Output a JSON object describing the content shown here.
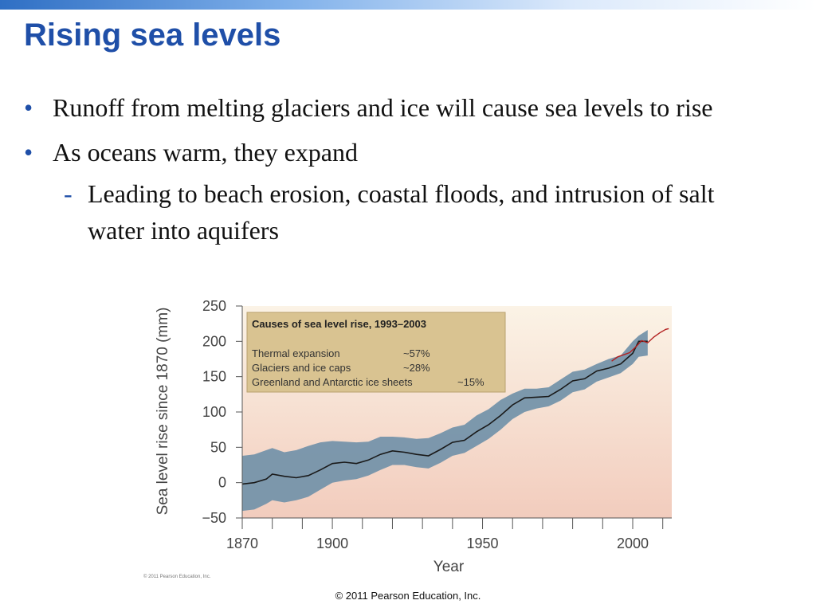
{
  "slide": {
    "title": "Rising sea levels",
    "bullets": [
      "Runoff from melting glaciers and ice will cause sea levels to rise",
      "As oceans warm, they expand"
    ],
    "sub_bullet": "Leading to beach erosion, coastal floods, and intrusion of salt water into aquifers",
    "bullet_symbol": "•",
    "sub_symbol": "-",
    "figure_credit": "© 2011 Pearson Education, Inc.",
    "footer": "© 2011 Pearson Education, Inc."
  },
  "colors": {
    "title": "#1f4fa8",
    "band": "#7593aa",
    "line": "#1a1a1a",
    "recent_line": "#b32020",
    "background_top": "#fbf3e6",
    "background_bottom": "#f2ccbd",
    "legend_box": "#d9c391"
  },
  "chart_data": {
    "type": "line",
    "title": "",
    "xlabel": "Year",
    "ylabel": "Sea level rise since 1870 (mm)",
    "xlim": [
      1870,
      2013
    ],
    "ylim": [
      -50,
      250
    ],
    "x_ticks": [
      1870,
      1900,
      1950,
      2000
    ],
    "y_ticks": [
      250,
      200,
      150,
      100,
      50,
      0,
      -50
    ],
    "y_tick_labels": [
      "250",
      "200",
      "150",
      "100",
      "50",
      "0",
      "−50"
    ],
    "grid": false,
    "legend": {
      "placement": "top-left",
      "title": "Causes of sea level rise, 1993–2003",
      "rows": [
        {
          "label": "Thermal expansion",
          "value": "~57%"
        },
        {
          "label": "Glaciers and ice caps",
          "value": "~28%"
        },
        {
          "label": "Greenland and Antarctic ice sheets",
          "value": "~15%"
        }
      ]
    },
    "series": [
      {
        "x": [
          1870,
          1874,
          1878,
          1880,
          1884,
          1888,
          1892,
          1896,
          1900,
          1904,
          1908,
          1912,
          1916,
          1920,
          1924,
          1928,
          1932,
          1936,
          1940,
          1944,
          1948,
          1952,
          1956,
          1960,
          1964,
          1968,
          1972,
          1976,
          1980,
          1984,
          1988,
          1992,
          1996,
          2000,
          2002,
          2005
        ],
        "values": [
          -2,
          0,
          5,
          12,
          9,
          7,
          10,
          18,
          27,
          29,
          27,
          32,
          40,
          45,
          43,
          40,
          38,
          47,
          57,
          60,
          72,
          82,
          95,
          110,
          120,
          121,
          122,
          132,
          144,
          147,
          158,
          162,
          168,
          183,
          200,
          200
        ],
        "upper": [
          38,
          40,
          46,
          49,
          43,
          46,
          52,
          57,
          59,
          58,
          57,
          58,
          65,
          65,
          64,
          62,
          63,
          70,
          78,
          82,
          95,
          104,
          117,
          126,
          133,
          133,
          135,
          146,
          157,
          160,
          168,
          175,
          180,
          200,
          208,
          216
        ],
        "lower": [
          -40,
          -38,
          -30,
          -25,
          -28,
          -25,
          -20,
          -10,
          0,
          3,
          5,
          10,
          18,
          25,
          25,
          22,
          20,
          28,
          38,
          42,
          52,
          62,
          75,
          90,
          100,
          105,
          108,
          116,
          128,
          132,
          143,
          149,
          155,
          168,
          178,
          180
        ]
      },
      {
        "x": [
          1993,
          1995,
          1997,
          1999,
          2001,
          2003,
          2005,
          2007,
          2009,
          2011,
          2012
        ],
        "values": [
          172,
          178,
          181,
          184,
          192,
          201,
          198,
          206,
          212,
          217,
          218
        ]
      }
    ]
  }
}
